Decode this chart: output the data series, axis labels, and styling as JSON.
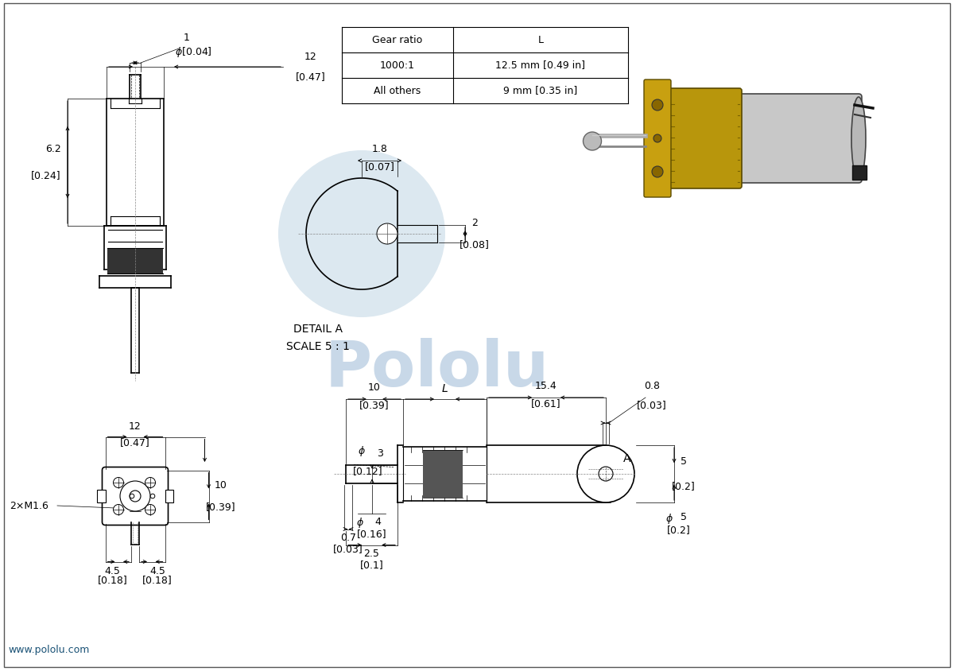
{
  "bg_color": "#ffffff",
  "line_color": "#000000",
  "watermark_color": "#c8d8e8",
  "website": "www.pololu.com",
  "table_rows": [
    [
      "Gear ratio",
      "L"
    ],
    [
      "1000:1",
      "12.5 mm [0.49 in]"
    ],
    [
      "All others",
      "9 mm [0.35 in]"
    ]
  ],
  "fs": 9,
  "lw": 0.8,
  "lw_thick": 1.2
}
